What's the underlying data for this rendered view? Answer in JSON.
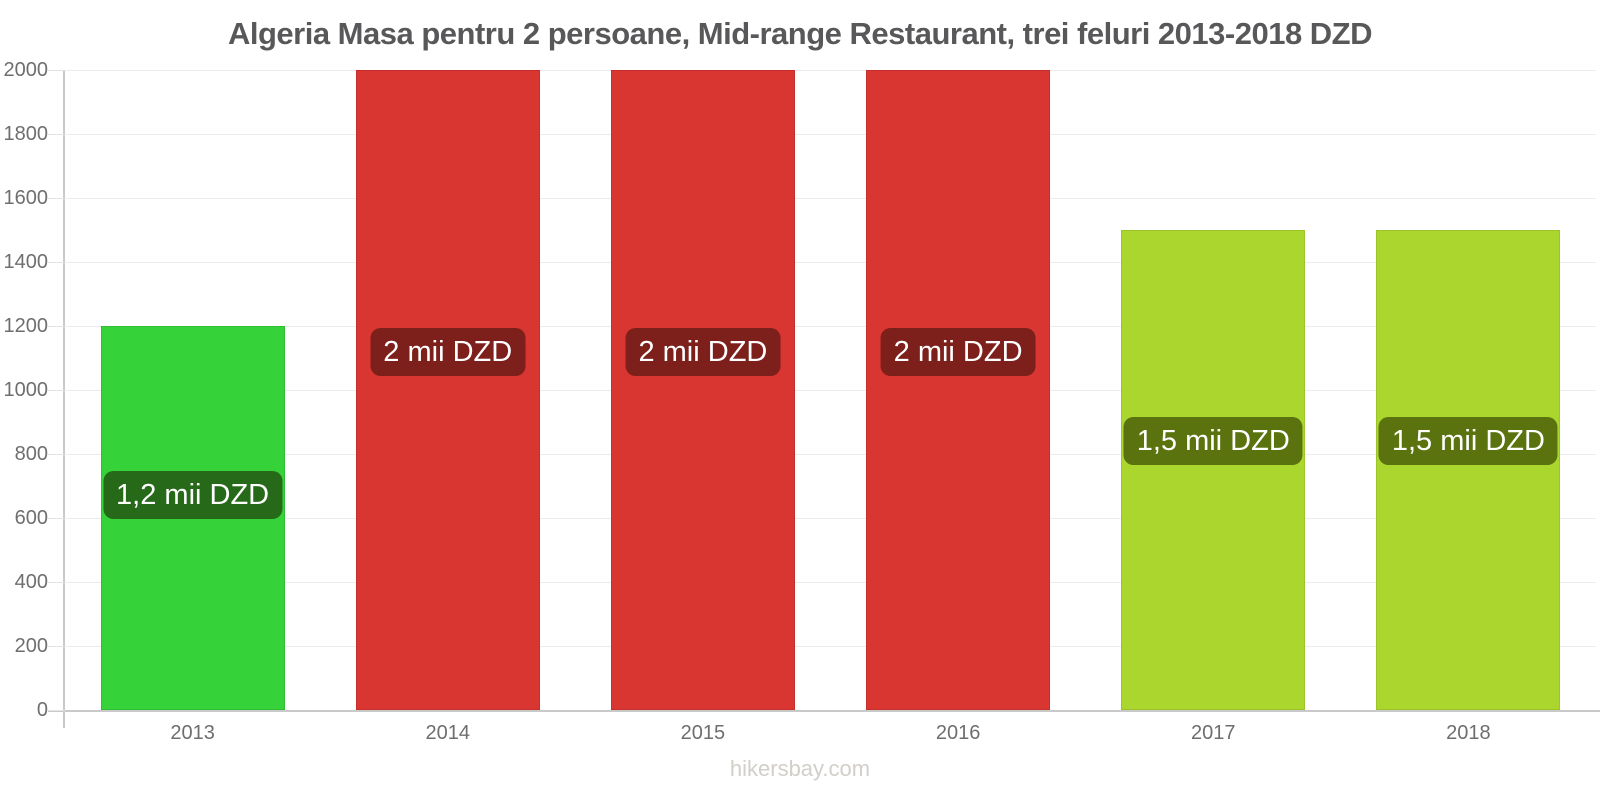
{
  "page": {
    "footer": "hikersbay.com"
  },
  "colors": {
    "title_text": "#58585a",
    "axis_text": "#6e6e6e",
    "axis_line": "#c9c9c9",
    "gridline": "#ececec",
    "footer_text": "#d2cec9",
    "bar_label_text": "#ffffff"
  },
  "chart_data": {
    "type": "bar",
    "title": "Algeria Masa pentru 2 persoane, Mid-range Restaurant, trei feluri 2013-2018 DZD",
    "xlabel": "",
    "ylabel": "",
    "categories": [
      "2013",
      "2014",
      "2015",
      "2016",
      "2017",
      "2018"
    ],
    "values": [
      1200,
      2000,
      2000,
      2000,
      1500,
      1500
    ],
    "bar_labels": [
      "1,2 mii DZD",
      "2 mii DZD",
      "2 mii DZD",
      "2 mii DZD",
      "1,5 mii DZD",
      "1,5 mii DZD"
    ],
    "bar_colors": [
      "#36d23a",
      "#d93632",
      "#d93632",
      "#d93632",
      "#abd62e",
      "#abd62e"
    ],
    "bar_border_colors": [
      "#2fbe33",
      "#c62f2b",
      "#c62f2b",
      "#c62f2b",
      "#9ac428",
      "#9ac428"
    ],
    "bar_label_bg": [
      "#266a19",
      "#7d1f1a",
      "#7d1f1a",
      "#7d1f1a",
      "#5a730f",
      "#5a730f"
    ],
    "ylim": [
      0,
      2000
    ],
    "yticks": [
      0,
      200,
      400,
      600,
      800,
      1000,
      1200,
      1400,
      1600,
      1800,
      2000
    ],
    "grid": true,
    "legend": false
  }
}
